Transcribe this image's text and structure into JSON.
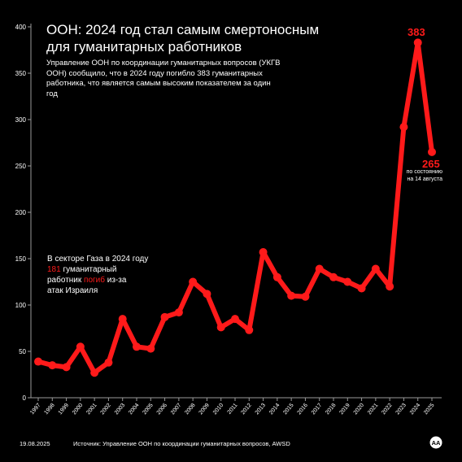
{
  "title": "ООН: 2024 год стал самым смертоносным для гуманитарных работников",
  "subtitle": "Управление ООН по координации гуманитарных вопросов (УКГВ ООН) сообщило, что в 2024 году погибло 383 гуманитарных работника, что является самым высоким показателем за один год",
  "callout": {
    "line1": "В секторе Газа в 2024 году",
    "number": "181",
    "text_a": " гуманитарный",
    "text_b": "работник ",
    "verb": "погиб",
    "text_c": " из-за",
    "line4": "атак Израиля"
  },
  "annotations": {
    "peak": "383",
    "last": "265",
    "last_note_1": "по состоянию",
    "last_note_2": "на 14 августа"
  },
  "footer": {
    "date": "19.08.2025",
    "source": "Источник: Управление ООН по координации гуманитарных вопросов, AWSD"
  },
  "logo_text": "AA",
  "colors": {
    "background": "#000000",
    "line": "#ff1a1a",
    "text": "#ffffff",
    "axis": "#9a9a9a"
  },
  "chart_data": {
    "type": "line",
    "x": [
      "1997",
      "1998",
      "1999",
      "2000",
      "2001",
      "2002",
      "2003",
      "2004",
      "2005",
      "2006",
      "2007",
      "2008",
      "2009",
      "2010",
      "2011",
      "2012",
      "2013",
      "2014",
      "2015",
      "2016",
      "2017",
      "2018",
      "2019",
      "2020",
      "2021",
      "2022",
      "2023",
      "2024",
      "2025"
    ],
    "values": [
      39,
      35,
      33,
      55,
      27,
      38,
      85,
      55,
      53,
      87,
      92,
      125,
      112,
      76,
      85,
      73,
      157,
      130,
      110,
      109,
      139,
      130,
      125,
      118,
      139,
      120,
      292,
      383,
      265
    ],
    "ylim": [
      0,
      400
    ],
    "yticks": [
      0,
      50,
      100,
      150,
      200,
      250,
      300,
      350,
      400
    ],
    "grid": false,
    "legend": "none"
  }
}
